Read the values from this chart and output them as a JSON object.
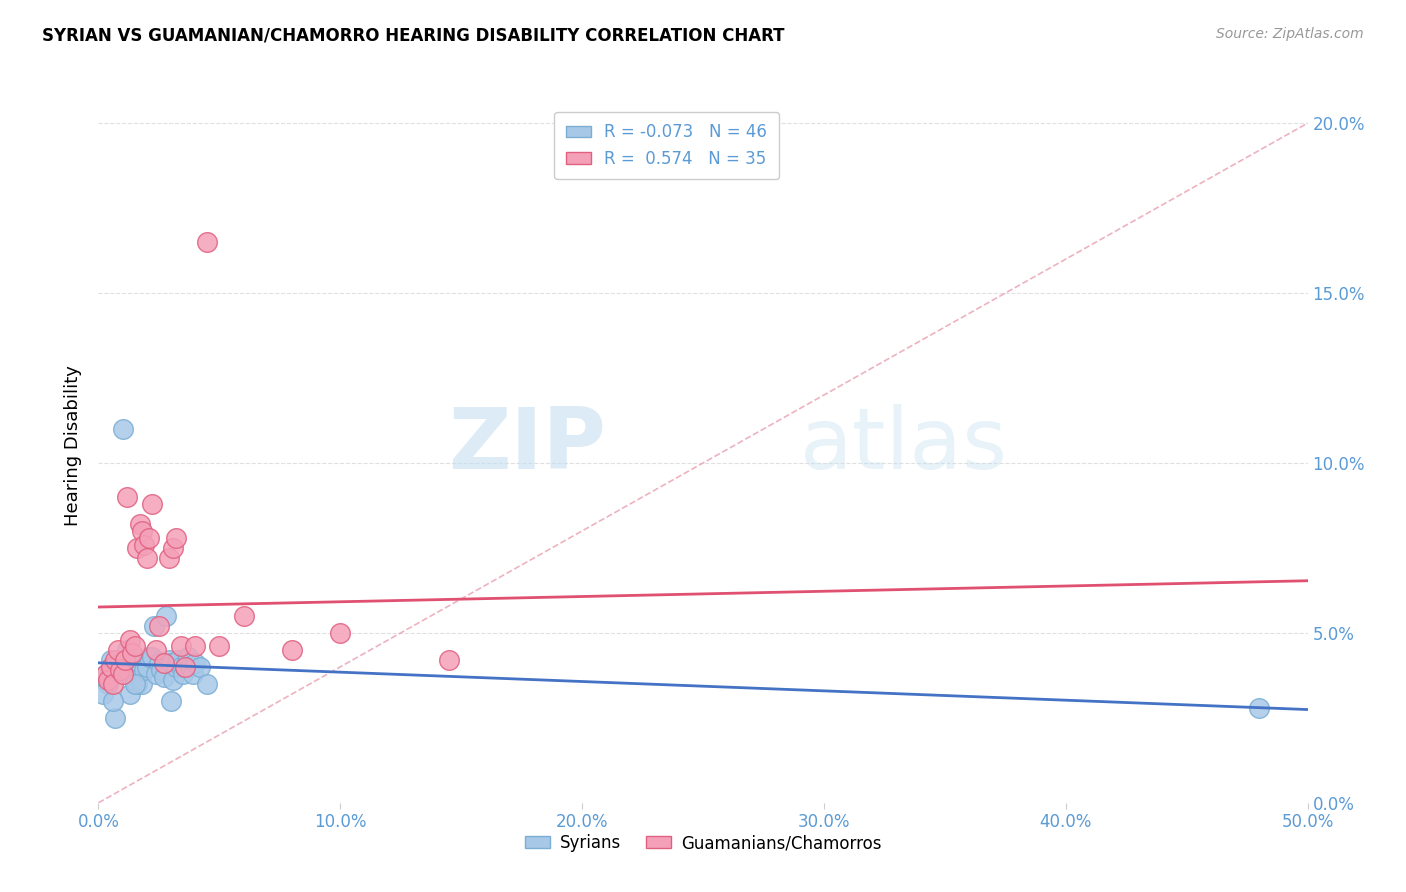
{
  "title": "SYRIAN VS GUAMANIAN/CHAMORRO HEARING DISABILITY CORRELATION CHART",
  "source": "Source: ZipAtlas.com",
  "ylabel": "Hearing Disability",
  "legend_title_syrians": "Syrians",
  "legend_title_guamanians": "Guamanians/Chamorros",
  "watermark_zip": "ZIP",
  "watermark_atlas": "atlas",
  "syrians_color": "#a8c8e8",
  "syrians_edge_color": "#7aaed4",
  "guamanians_color": "#f4a0b8",
  "guamanians_edge_color": "#e06080",
  "syrians_line_color": "#4472c4",
  "guamanians_line_color": "#e05070",
  "diagonal_line_color": "#e8a0b0",
  "background_color": "#ffffff",
  "grid_color": "#e0e0e0",
  "tick_label_color": "#5b9bd5",
  "xlim": [
    0.0,
    50.0
  ],
  "ylim": [
    0.0,
    21.0
  ],
  "ytick_values": [
    0.0,
    5.0,
    10.0,
    15.0,
    20.0
  ],
  "ytick_labels": [
    "0.0%",
    "5.0%",
    "10.0%",
    "15.0%",
    "20.0%"
  ],
  "xtick_values": [
    0.0,
    10.0,
    20.0,
    30.0,
    40.0,
    50.0
  ],
  "xtick_labels": [
    "0.0%",
    "10.0%",
    "20.0%",
    "30.0%",
    "40.0%",
    "50.0%"
  ],
  "syrians_R": -0.073,
  "syrians_N": 46,
  "guamanians_R": 0.574,
  "guamanians_N": 35,
  "syrians_x": [
    0.3,
    0.4,
    0.5,
    0.6,
    0.7,
    0.8,
    0.9,
    1.0,
    1.1,
    1.2,
    1.3,
    1.4,
    1.5,
    1.6,
    1.7,
    1.8,
    1.9,
    2.0,
    2.1,
    2.2,
    2.3,
    2.4,
    2.5,
    2.6,
    2.7,
    2.8,
    2.9,
    3.0,
    3.1,
    3.2,
    3.3,
    3.4,
    3.5,
    3.6,
    3.7,
    3.8,
    3.9,
    4.0,
    4.2,
    4.5,
    0.2,
    0.6,
    1.0,
    1.5,
    3.0,
    48.0
  ],
  "syrians_y": [
    3.8,
    3.5,
    4.2,
    3.9,
    2.5,
    4.0,
    4.1,
    3.8,
    4.2,
    4.5,
    3.2,
    4.3,
    3.6,
    3.5,
    4.1,
    3.5,
    3.9,
    4.0,
    4.3,
    4.3,
    5.2,
    3.8,
    4.1,
    3.9,
    3.7,
    5.5,
    4.2,
    4.1,
    3.6,
    4.0,
    4.2,
    4.0,
    3.8,
    4.0,
    4.3,
    4.0,
    3.8,
    4.1,
    4.0,
    3.5,
    3.2,
    3.0,
    11.0,
    3.5,
    3.0,
    2.8
  ],
  "guamanians_x": [
    0.3,
    0.4,
    0.5,
    0.6,
    0.7,
    0.8,
    0.9,
    1.0,
    1.1,
    1.2,
    1.3,
    1.4,
    1.5,
    1.6,
    1.7,
    1.8,
    1.9,
    2.0,
    2.1,
    2.2,
    2.4,
    2.5,
    2.7,
    2.9,
    3.1,
    3.2,
    3.4,
    3.6,
    4.0,
    4.5,
    5.0,
    6.0,
    8.0,
    10.0,
    14.5
  ],
  "guamanians_y": [
    3.8,
    3.6,
    4.0,
    3.5,
    4.2,
    4.5,
    3.9,
    3.8,
    4.2,
    9.0,
    4.8,
    4.4,
    4.6,
    7.5,
    8.2,
    8.0,
    7.6,
    7.2,
    7.8,
    8.8,
    4.5,
    5.2,
    4.1,
    7.2,
    7.5,
    7.8,
    4.6,
    4.0,
    4.6,
    16.5,
    4.6,
    5.5,
    4.5,
    5.0,
    4.2
  ]
}
